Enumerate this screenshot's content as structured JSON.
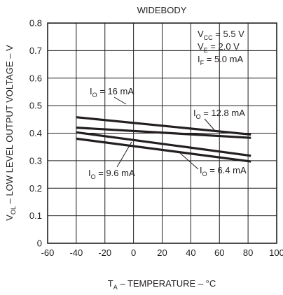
{
  "chart_data": {
    "type": "line",
    "title": "WIDEBODY",
    "xlabel": {
      "main": "T",
      "sub": "A",
      "rest": " – TEMPERATURE – °C"
    },
    "ylabel": {
      "main": "V",
      "sub": "OL",
      "rest": " – LOW LEVEL OUTPUT VOLTAGE – V"
    },
    "xlim": [
      -60,
      100
    ],
    "ylim": [
      0,
      0.8
    ],
    "x_ticks": [
      -60,
      -40,
      -20,
      0,
      20,
      40,
      60,
      80,
      100
    ],
    "y_ticks": [
      0,
      0.1,
      0.2,
      0.3,
      0.4,
      0.5,
      0.6,
      0.7,
      0.8
    ],
    "x_tick_labels": [
      "-60",
      "-40",
      "-20",
      "0",
      "20",
      "40",
      "60",
      "80",
      "100"
    ],
    "y_tick_labels": [
      "0",
      "0.1",
      "0.2",
      "0.3",
      "0.4",
      "0.5",
      "0.6",
      "0.7",
      "0.8"
    ],
    "grid": true,
    "conditions": [
      {
        "main": "V",
        "sub": "CC",
        "rest": " = 5.5 V"
      },
      {
        "main": "V",
        "sub": "E",
        "rest": " = 2.0 V"
      },
      {
        "main": "I",
        "sub": "F",
        "rest": " = 5.0 mA"
      }
    ],
    "series": [
      {
        "name": "16 mA",
        "x": [
          -40,
          82
        ],
        "y": [
          0.458,
          0.395
        ]
      },
      {
        "name": "12.8 mA",
        "x": [
          -40,
          82
        ],
        "y": [
          0.42,
          0.383
        ]
      },
      {
        "name": "9.6 mA",
        "x": [
          -40,
          82
        ],
        "y": [
          0.403,
          0.318
        ]
      },
      {
        "name": "6.4 mA",
        "x": [
          -40,
          82
        ],
        "y": [
          0.38,
          0.297
        ]
      }
    ],
    "annotations": [
      {
        "label": {
          "main": "I",
          "sub": "O",
          "rest": " = 16 mA"
        }
      },
      {
        "label": {
          "main": "I",
          "sub": "O",
          "rest": " = 12.8 mA"
        }
      },
      {
        "label": {
          "main": "I",
          "sub": "O",
          "rest": " = 9.6 mA"
        }
      },
      {
        "label": {
          "main": "I",
          "sub": "O",
          "rest": " = 6.4 mA"
        }
      }
    ]
  }
}
